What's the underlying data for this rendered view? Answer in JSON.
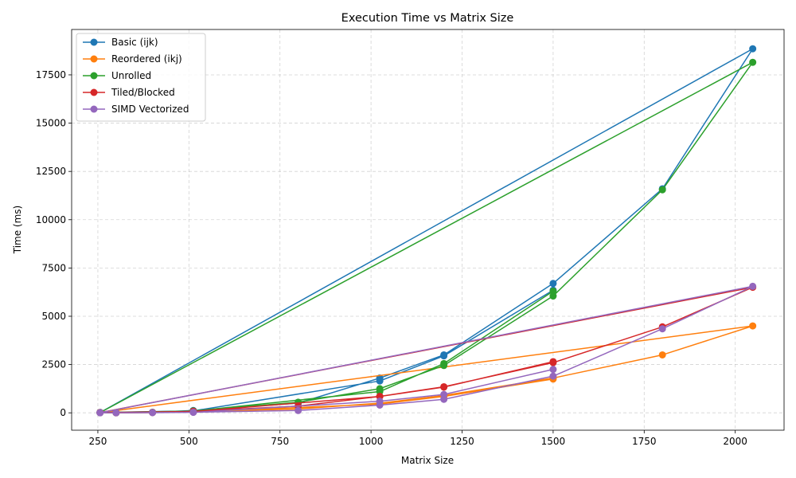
{
  "chart_data": {
    "type": "line",
    "title": "Execution Time vs Matrix Size",
    "xlabel": "Matrix Size",
    "ylabel": "Time (ms)",
    "xlim": [
      178,
      2134
    ],
    "ylim": [
      -900,
      19850
    ],
    "xticks": [
      250,
      500,
      750,
      1000,
      1250,
      1500,
      1750,
      2000
    ],
    "yticks": [
      0,
      2500,
      5000,
      7500,
      10000,
      12500,
      15000,
      17500
    ],
    "grid": true,
    "legend_position": "upper-left",
    "series": [
      {
        "name": "Basic (ijk)",
        "color": "#1f77b4",
        "x": [
          256,
          300,
          400,
          512,
          800,
          1024,
          1200,
          1500,
          1800,
          2048,
          256,
          512,
          1024,
          1200,
          1500
        ],
        "y": [
          20,
          5,
          30,
          120,
          500,
          1800,
          3000,
          6700,
          11600,
          18850,
          15,
          100,
          1650,
          2950,
          6350
        ]
      },
      {
        "name": "Reordered (ikj)",
        "color": "#ff7f0e",
        "x": [
          256,
          300,
          400,
          512,
          800,
          1024,
          1200,
          1500,
          1800,
          2048,
          256,
          512,
          1024,
          1200,
          1500
        ],
        "y": [
          10,
          2,
          15,
          60,
          200,
          500,
          900,
          1800,
          3000,
          4500,
          8,
          50,
          450,
          850,
          1750
        ]
      },
      {
        "name": "Unrolled",
        "color": "#2ca02c",
        "x": [
          256,
          300,
          400,
          512,
          800,
          1024,
          1200,
          1500,
          1800,
          2048,
          256,
          512,
          1024,
          1200,
          1500
        ],
        "y": [
          15,
          3,
          20,
          100,
          550,
          1250,
          2450,
          6050,
          11550,
          18150,
          12,
          90,
          1100,
          2550,
          6300
        ]
      },
      {
        "name": "Tiled/Blocked",
        "color": "#d62728",
        "x": [
          256,
          300,
          400,
          512,
          800,
          1024,
          1200,
          1500,
          1800,
          2048,
          256,
          512,
          1024,
          1200,
          1500
        ],
        "y": [
          15,
          3,
          20,
          80,
          350,
          850,
          1350,
          2600,
          4450,
          6500,
          12,
          70,
          850,
          1330,
          2650
        ]
      },
      {
        "name": "SIMD Vectorized",
        "color": "#9467bd",
        "x": [
          256,
          300,
          400,
          512,
          800,
          1024,
          1200,
          1500,
          1800,
          2048,
          256,
          512,
          1024,
          1200,
          1500
        ],
        "y": [
          5,
          1,
          8,
          30,
          120,
          400,
          700,
          1900,
          4350,
          6550,
          4,
          25,
          600,
          950,
          2250
        ]
      }
    ]
  }
}
